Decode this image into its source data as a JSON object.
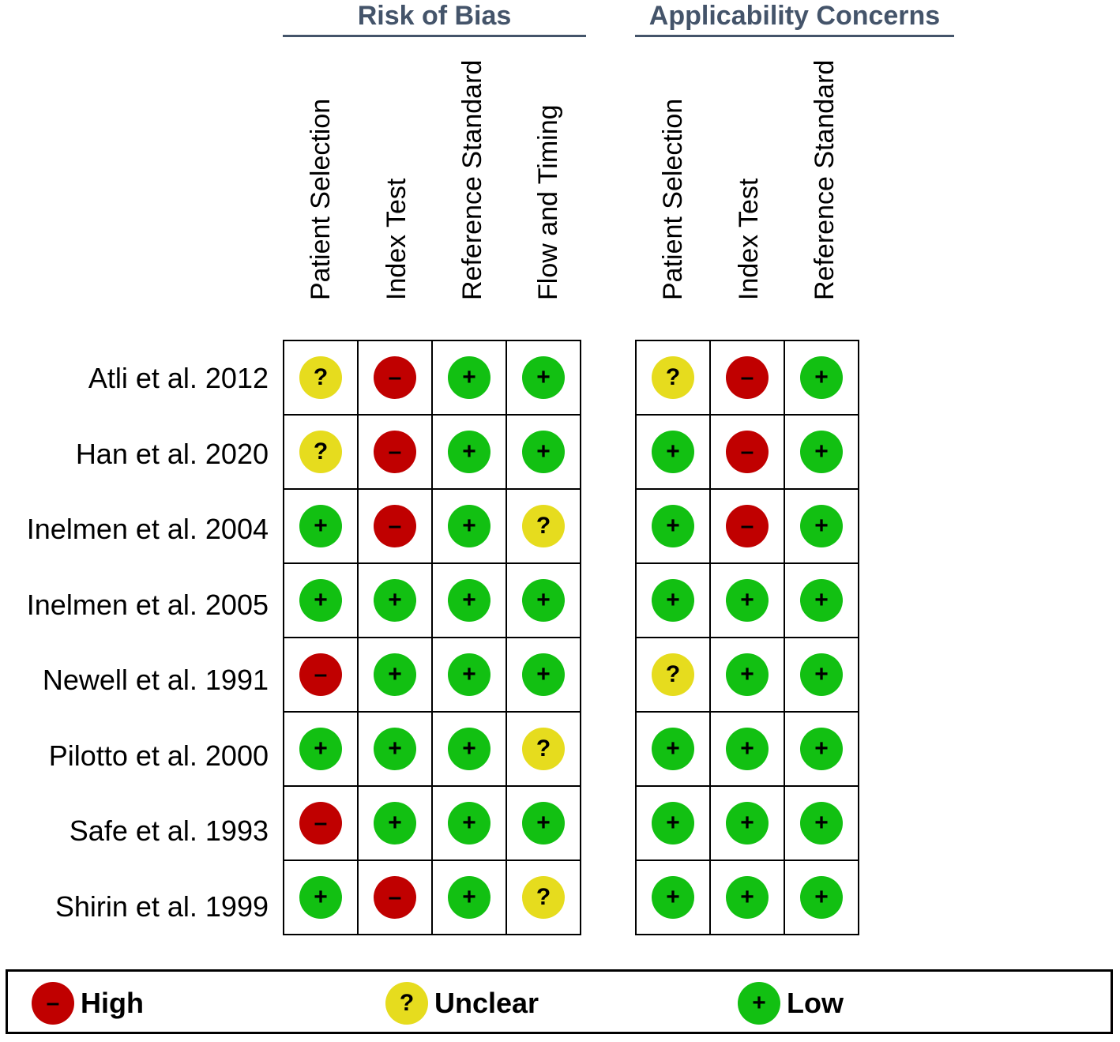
{
  "chart_data": {
    "type": "table",
    "groups": [
      {
        "title": "Risk of Bias",
        "domains": [
          "Patient Selection",
          "Index Test",
          "Reference Standard",
          "Flow and Timing"
        ]
      },
      {
        "title": "Applicability Concerns",
        "domains": [
          "Patient Selection",
          "Index Test",
          "Reference Standard"
        ]
      }
    ],
    "studies": [
      {
        "name": "Atli et al. 2012",
        "risk": [
          "unclear",
          "high",
          "low",
          "low"
        ],
        "applicability": [
          "unclear",
          "high",
          "low"
        ]
      },
      {
        "name": "Han et al. 2020",
        "risk": [
          "unclear",
          "high",
          "low",
          "low"
        ],
        "applicability": [
          "low",
          "high",
          "low"
        ]
      },
      {
        "name": "Inelmen et al. 2004",
        "risk": [
          "low",
          "high",
          "low",
          "unclear"
        ],
        "applicability": [
          "low",
          "high",
          "low"
        ]
      },
      {
        "name": "Inelmen et al. 2005",
        "risk": [
          "low",
          "low",
          "low",
          "low"
        ],
        "applicability": [
          "low",
          "low",
          "low"
        ]
      },
      {
        "name": "Newell et al. 1991",
        "risk": [
          "high",
          "low",
          "low",
          "low"
        ],
        "applicability": [
          "unclear",
          "low",
          "low"
        ]
      },
      {
        "name": "Pilotto et al. 2000",
        "risk": [
          "low",
          "low",
          "low",
          "unclear"
        ],
        "applicability": [
          "low",
          "low",
          "low"
        ]
      },
      {
        "name": "Safe et al. 1993",
        "risk": [
          "high",
          "low",
          "low",
          "low"
        ],
        "applicability": [
          "low",
          "low",
          "low"
        ]
      },
      {
        "name": "Shirin et al. 1999",
        "risk": [
          "low",
          "high",
          "low",
          "unclear"
        ],
        "applicability": [
          "low",
          "low",
          "low"
        ]
      }
    ],
    "legend": [
      {
        "key": "high",
        "label": "High",
        "symbol": "–",
        "color": "#c00000"
      },
      {
        "key": "unclear",
        "label": "Unclear",
        "symbol": "?",
        "color": "#e6dc1e"
      },
      {
        "key": "low",
        "label": "Low",
        "symbol": "+",
        "color": "#12c012"
      }
    ]
  }
}
